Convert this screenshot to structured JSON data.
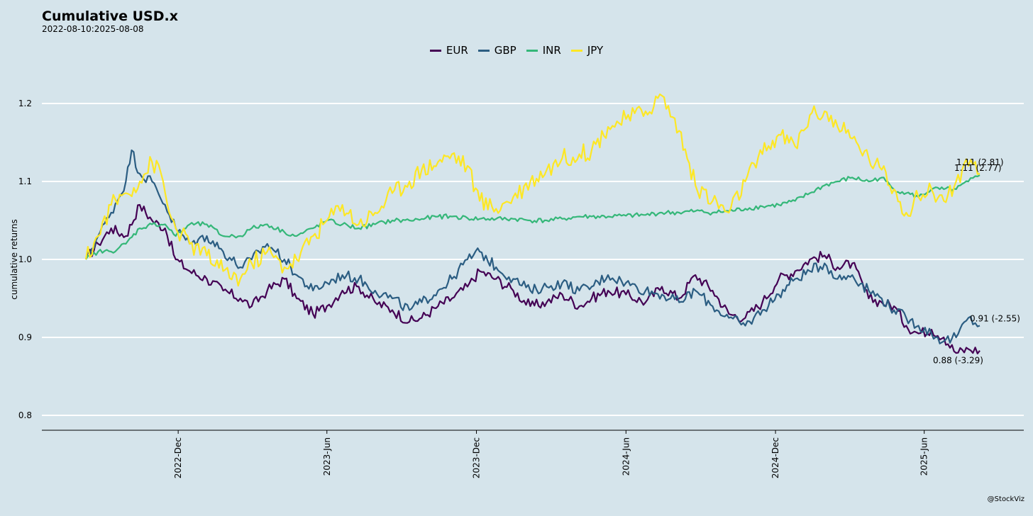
{
  "chart_data": {
    "type": "line",
    "title": "Cumulative USD.x",
    "subtitle": "2022-08-10:2025-08-08",
    "xlabel": "",
    "ylabel": "cumulative returns",
    "caption": "@StockViz",
    "ylim": [
      0.78,
      1.24
    ],
    "yticks": [
      0.8,
      0.9,
      1.0,
      1.1,
      1.2
    ],
    "ytick_labels": [
      "0.8",
      "0.9",
      "1.0",
      "1.1",
      "1.2"
    ],
    "x_start": "2022-08-10",
    "x_end": "2025-08-08",
    "xticks": [
      {
        "date": "2022-12-01",
        "label": "2022-Dec"
      },
      {
        "date": "2023-06-01",
        "label": "2023-Jun"
      },
      {
        "date": "2023-12-01",
        "label": "2023-Dec"
      },
      {
        "date": "2024-06-01",
        "label": "2024-Jun"
      },
      {
        "date": "2024-12-01",
        "label": "2024-Dec"
      },
      {
        "date": "2025-06-01",
        "label": "2025-Jun"
      }
    ],
    "legend_position": "top",
    "grid": true,
    "series": [
      {
        "name": "EUR",
        "color": "#440154",
        "end_label": "0.88 (-3.29)",
        "points": [
          [
            "2022-08-10",
            1.0
          ],
          [
            "2022-08-25",
            1.02
          ],
          [
            "2022-09-10",
            1.04
          ],
          [
            "2022-09-28",
            1.03
          ],
          [
            "2022-10-15",
            1.07
          ],
          [
            "2022-10-30",
            1.05
          ],
          [
            "2022-11-15",
            1.04
          ],
          [
            "2022-11-28",
            1.0
          ],
          [
            "2022-12-15",
            0.985
          ],
          [
            "2023-01-05",
            0.975
          ],
          [
            "2023-01-25",
            0.96
          ],
          [
            "2023-02-15",
            0.95
          ],
          [
            "2023-03-01",
            0.94
          ],
          [
            "2023-03-20",
            0.96
          ],
          [
            "2023-04-10",
            0.975
          ],
          [
            "2023-04-25",
            0.95
          ],
          [
            "2023-05-15",
            0.93
          ],
          [
            "2023-06-01",
            0.94
          ],
          [
            "2023-06-20",
            0.96
          ],
          [
            "2023-07-10",
            0.965
          ],
          [
            "2023-07-30",
            0.945
          ],
          [
            "2023-08-20",
            0.935
          ],
          [
            "2023-09-10",
            0.92
          ],
          [
            "2023-09-25",
            0.925
          ],
          [
            "2023-10-15",
            0.94
          ],
          [
            "2023-11-01",
            0.95
          ],
          [
            "2023-11-20",
            0.965
          ],
          [
            "2023-12-05",
            0.985
          ],
          [
            "2023-12-25",
            0.975
          ],
          [
            "2024-01-15",
            0.96
          ],
          [
            "2024-02-05",
            0.94
          ],
          [
            "2024-02-25",
            0.945
          ],
          [
            "2024-03-15",
            0.955
          ],
          [
            "2024-04-05",
            0.94
          ],
          [
            "2024-04-20",
            0.95
          ],
          [
            "2024-05-10",
            0.96
          ],
          [
            "2024-06-01",
            0.955
          ],
          [
            "2024-06-25",
            0.945
          ],
          [
            "2024-07-15",
            0.965
          ],
          [
            "2024-08-05",
            0.95
          ],
          [
            "2024-08-25",
            0.98
          ],
          [
            "2024-09-15",
            0.96
          ],
          [
            "2024-10-05",
            0.93
          ],
          [
            "2024-10-25",
            0.925
          ],
          [
            "2024-11-15",
            0.945
          ],
          [
            "2024-12-05",
            0.975
          ],
          [
            "2024-12-25",
            0.985
          ],
          [
            "2025-01-12",
            1.0
          ],
          [
            "2025-01-30",
            1.005
          ],
          [
            "2025-02-15",
            0.99
          ],
          [
            "2025-03-05",
            0.995
          ],
          [
            "2025-03-25",
            0.95
          ],
          [
            "2025-04-10",
            0.945
          ],
          [
            "2025-04-25",
            0.94
          ],
          [
            "2025-05-10",
            0.915
          ],
          [
            "2025-05-25",
            0.905
          ],
          [
            "2025-06-10",
            0.91
          ],
          [
            "2025-06-25",
            0.9
          ],
          [
            "2025-07-10",
            0.88
          ],
          [
            "2025-07-25",
            0.885
          ],
          [
            "2025-08-08",
            0.883
          ]
        ]
      },
      {
        "name": "GBP",
        "color": "#2b5d82",
        "end_label": "0.91 (-2.55)",
        "points": [
          [
            "2022-08-10",
            1.0
          ],
          [
            "2022-08-25",
            1.03
          ],
          [
            "2022-09-10",
            1.06
          ],
          [
            "2022-09-28",
            1.1
          ],
          [
            "2022-10-05",
            1.14
          ],
          [
            "2022-10-15",
            1.11
          ],
          [
            "2022-10-30",
            1.1
          ],
          [
            "2022-11-15",
            1.07
          ],
          [
            "2022-11-28",
            1.04
          ],
          [
            "2022-12-15",
            1.02
          ],
          [
            "2023-01-05",
            1.03
          ],
          [
            "2023-01-25",
            1.01
          ],
          [
            "2023-02-15",
            0.99
          ],
          [
            "2023-03-01",
            1.0
          ],
          [
            "2023-03-20",
            1.02
          ],
          [
            "2023-04-10",
            1.0
          ],
          [
            "2023-04-25",
            0.98
          ],
          [
            "2023-05-15",
            0.96
          ],
          [
            "2023-06-01",
            0.97
          ],
          [
            "2023-06-20",
            0.98
          ],
          [
            "2023-07-10",
            0.975
          ],
          [
            "2023-07-30",
            0.96
          ],
          [
            "2023-08-20",
            0.95
          ],
          [
            "2023-09-10",
            0.935
          ],
          [
            "2023-09-25",
            0.945
          ],
          [
            "2023-10-15",
            0.96
          ],
          [
            "2023-11-01",
            0.975
          ],
          [
            "2023-11-20",
            1.0
          ],
          [
            "2023-12-05",
            1.01
          ],
          [
            "2023-12-25",
            0.99
          ],
          [
            "2024-01-15",
            0.975
          ],
          [
            "2024-02-05",
            0.96
          ],
          [
            "2024-02-25",
            0.965
          ],
          [
            "2024-03-15",
            0.97
          ],
          [
            "2024-04-05",
            0.96
          ],
          [
            "2024-04-20",
            0.965
          ],
          [
            "2024-05-10",
            0.98
          ],
          [
            "2024-06-01",
            0.97
          ],
          [
            "2024-06-25",
            0.96
          ],
          [
            "2024-07-15",
            0.955
          ],
          [
            "2024-08-05",
            0.945
          ],
          [
            "2024-08-25",
            0.96
          ],
          [
            "2024-09-15",
            0.94
          ],
          [
            "2024-10-05",
            0.925
          ],
          [
            "2024-10-25",
            0.915
          ],
          [
            "2024-11-15",
            0.935
          ],
          [
            "2024-12-05",
            0.955
          ],
          [
            "2024-12-25",
            0.975
          ],
          [
            "2025-01-12",
            0.985
          ],
          [
            "2025-01-30",
            0.995
          ],
          [
            "2025-02-15",
            0.975
          ],
          [
            "2025-03-05",
            0.98
          ],
          [
            "2025-03-25",
            0.96
          ],
          [
            "2025-04-10",
            0.95
          ],
          [
            "2025-04-25",
            0.935
          ],
          [
            "2025-05-10",
            0.925
          ],
          [
            "2025-05-25",
            0.915
          ],
          [
            "2025-06-10",
            0.905
          ],
          [
            "2025-06-25",
            0.895
          ],
          [
            "2025-07-10",
            0.9
          ],
          [
            "2025-07-25",
            0.925
          ],
          [
            "2025-08-08",
            0.915
          ]
        ]
      },
      {
        "name": "INR",
        "color": "#35b779",
        "end_label": "1.11 (2.77)",
        "points": [
          [
            "2022-08-10",
            1.0
          ],
          [
            "2022-08-25",
            1.01
          ],
          [
            "2022-09-10",
            1.01
          ],
          [
            "2022-09-28",
            1.02
          ],
          [
            "2022-10-15",
            1.04
          ],
          [
            "2022-10-30",
            1.045
          ],
          [
            "2022-11-15",
            1.045
          ],
          [
            "2022-11-28",
            1.03
          ],
          [
            "2022-12-15",
            1.045
          ],
          [
            "2023-01-05",
            1.045
          ],
          [
            "2023-01-25",
            1.03
          ],
          [
            "2023-02-15",
            1.03
          ],
          [
            "2023-03-01",
            1.04
          ],
          [
            "2023-03-20",
            1.045
          ],
          [
            "2023-04-10",
            1.035
          ],
          [
            "2023-04-25",
            1.03
          ],
          [
            "2023-05-15",
            1.04
          ],
          [
            "2023-06-01",
            1.05
          ],
          [
            "2023-06-20",
            1.045
          ],
          [
            "2023-07-10",
            1.04
          ],
          [
            "2023-07-30",
            1.045
          ],
          [
            "2023-08-20",
            1.05
          ],
          [
            "2023-09-10",
            1.05
          ],
          [
            "2023-09-25",
            1.052
          ],
          [
            "2023-10-15",
            1.055
          ],
          [
            "2023-11-01",
            1.055
          ],
          [
            "2023-11-20",
            1.053
          ],
          [
            "2023-12-05",
            1.052
          ],
          [
            "2023-12-25",
            1.052
          ],
          [
            "2024-01-15",
            1.052
          ],
          [
            "2024-02-05",
            1.05
          ],
          [
            "2024-02-25",
            1.05
          ],
          [
            "2024-03-15",
            1.052
          ],
          [
            "2024-04-05",
            1.055
          ],
          [
            "2024-04-20",
            1.055
          ],
          [
            "2024-05-10",
            1.055
          ],
          [
            "2024-06-01",
            1.056
          ],
          [
            "2024-06-25",
            1.057
          ],
          [
            "2024-07-15",
            1.06
          ],
          [
            "2024-08-05",
            1.06
          ],
          [
            "2024-08-25",
            1.062
          ],
          [
            "2024-09-15",
            1.06
          ],
          [
            "2024-10-05",
            1.062
          ],
          [
            "2024-10-25",
            1.065
          ],
          [
            "2024-11-15",
            1.068
          ],
          [
            "2024-12-05",
            1.07
          ],
          [
            "2024-12-25",
            1.075
          ],
          [
            "2025-01-12",
            1.085
          ],
          [
            "2025-01-30",
            1.095
          ],
          [
            "2025-02-15",
            1.1
          ],
          [
            "2025-03-05",
            1.105
          ],
          [
            "2025-03-25",
            1.1
          ],
          [
            "2025-04-10",
            1.105
          ],
          [
            "2025-04-25",
            1.09
          ],
          [
            "2025-05-10",
            1.085
          ],
          [
            "2025-05-25",
            1.08
          ],
          [
            "2025-06-10",
            1.09
          ],
          [
            "2025-06-25",
            1.09
          ],
          [
            "2025-07-10",
            1.09
          ],
          [
            "2025-07-25",
            1.1
          ],
          [
            "2025-08-08",
            1.108
          ]
        ]
      },
      {
        "name": "JPY",
        "color": "#fde725",
        "end_label": "1.11 (2.81)",
        "points": [
          [
            "2022-08-10",
            1.0
          ],
          [
            "2022-08-25",
            1.03
          ],
          [
            "2022-09-10",
            1.07
          ],
          [
            "2022-09-28",
            1.085
          ],
          [
            "2022-10-15",
            1.1
          ],
          [
            "2022-10-30",
            1.125
          ],
          [
            "2022-11-10",
            1.11
          ],
          [
            "2022-11-20",
            1.06
          ],
          [
            "2022-11-28",
            1.04
          ],
          [
            "2022-12-15",
            1.02
          ],
          [
            "2023-01-05",
            1.005
          ],
          [
            "2023-01-25",
            0.985
          ],
          [
            "2023-02-15",
            0.975
          ],
          [
            "2023-03-01",
            0.995
          ],
          [
            "2023-03-20",
            1.01
          ],
          [
            "2023-04-10",
            0.99
          ],
          [
            "2023-04-25",
            1.0
          ],
          [
            "2023-05-15",
            1.03
          ],
          [
            "2023-06-01",
            1.05
          ],
          [
            "2023-06-20",
            1.07
          ],
          [
            "2023-07-10",
            1.045
          ],
          [
            "2023-07-30",
            1.06
          ],
          [
            "2023-08-20",
            1.085
          ],
          [
            "2023-09-10",
            1.1
          ],
          [
            "2023-09-25",
            1.115
          ],
          [
            "2023-10-15",
            1.125
          ],
          [
            "2023-11-01",
            1.135
          ],
          [
            "2023-11-20",
            1.12
          ],
          [
            "2023-12-05",
            1.075
          ],
          [
            "2023-12-25",
            1.065
          ],
          [
            "2024-01-15",
            1.08
          ],
          [
            "2024-02-05",
            1.1
          ],
          [
            "2024-02-25",
            1.115
          ],
          [
            "2024-03-15",
            1.13
          ],
          [
            "2024-04-05",
            1.135
          ],
          [
            "2024-04-20",
            1.14
          ],
          [
            "2024-05-10",
            1.17
          ],
          [
            "2024-06-01",
            1.18
          ],
          [
            "2024-06-25",
            1.19
          ],
          [
            "2024-07-15",
            1.21
          ],
          [
            "2024-08-05",
            1.165
          ],
          [
            "2024-08-25",
            1.095
          ],
          [
            "2024-09-15",
            1.075
          ],
          [
            "2024-10-05",
            1.06
          ],
          [
            "2024-10-25",
            1.1
          ],
          [
            "2024-11-15",
            1.135
          ],
          [
            "2024-12-05",
            1.16
          ],
          [
            "2024-12-25",
            1.145
          ],
          [
            "2025-01-12",
            1.185
          ],
          [
            "2025-01-30",
            1.19
          ],
          [
            "2025-02-15",
            1.17
          ],
          [
            "2025-03-05",
            1.155
          ],
          [
            "2025-03-25",
            1.13
          ],
          [
            "2025-04-10",
            1.115
          ],
          [
            "2025-04-25",
            1.09
          ],
          [
            "2025-05-10",
            1.06
          ],
          [
            "2025-05-25",
            1.08
          ],
          [
            "2025-06-10",
            1.09
          ],
          [
            "2025-06-25",
            1.075
          ],
          [
            "2025-07-10",
            1.1
          ],
          [
            "2025-07-25",
            1.12
          ],
          [
            "2025-08-08",
            1.11
          ]
        ]
      }
    ]
  }
}
